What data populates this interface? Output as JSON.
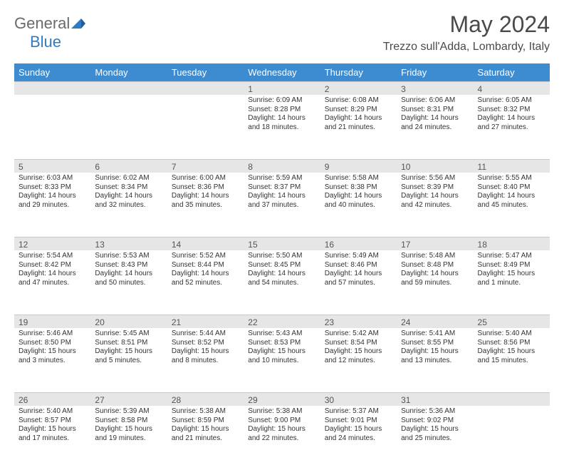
{
  "brand": {
    "word1": "General",
    "word2": "Blue"
  },
  "title": "May 2024",
  "location": "Trezzo sull'Adda, Lombardy, Italy",
  "colors": {
    "header_bg": "#3d8bd0",
    "header_text": "#ffffff",
    "band_bg": "#e6e6e6",
    "grid_line": "#c8c8c8",
    "text": "#333333",
    "muted": "#555555",
    "logo_gray": "#6a6a6a",
    "logo_blue": "#2f7cc2"
  },
  "typography": {
    "title_fontsize": 32,
    "location_fontsize": 16,
    "header_fontsize": 13,
    "cell_fontsize": 10,
    "daynum_fontsize": 12
  },
  "weekdays": [
    "Sunday",
    "Monday",
    "Tuesday",
    "Wednesday",
    "Thursday",
    "Friday",
    "Saturday"
  ],
  "weeks": [
    [
      null,
      null,
      null,
      {
        "n": "1",
        "sunrise": "6:09 AM",
        "sunset": "8:28 PM",
        "daylight": "14 hours and 18 minutes."
      },
      {
        "n": "2",
        "sunrise": "6:08 AM",
        "sunset": "8:29 PM",
        "daylight": "14 hours and 21 minutes."
      },
      {
        "n": "3",
        "sunrise": "6:06 AM",
        "sunset": "8:31 PM",
        "daylight": "14 hours and 24 minutes."
      },
      {
        "n": "4",
        "sunrise": "6:05 AM",
        "sunset": "8:32 PM",
        "daylight": "14 hours and 27 minutes."
      }
    ],
    [
      {
        "n": "5",
        "sunrise": "6:03 AM",
        "sunset": "8:33 PM",
        "daylight": "14 hours and 29 minutes."
      },
      {
        "n": "6",
        "sunrise": "6:02 AM",
        "sunset": "8:34 PM",
        "daylight": "14 hours and 32 minutes."
      },
      {
        "n": "7",
        "sunrise": "6:00 AM",
        "sunset": "8:36 PM",
        "daylight": "14 hours and 35 minutes."
      },
      {
        "n": "8",
        "sunrise": "5:59 AM",
        "sunset": "8:37 PM",
        "daylight": "14 hours and 37 minutes."
      },
      {
        "n": "9",
        "sunrise": "5:58 AM",
        "sunset": "8:38 PM",
        "daylight": "14 hours and 40 minutes."
      },
      {
        "n": "10",
        "sunrise": "5:56 AM",
        "sunset": "8:39 PM",
        "daylight": "14 hours and 42 minutes."
      },
      {
        "n": "11",
        "sunrise": "5:55 AM",
        "sunset": "8:40 PM",
        "daylight": "14 hours and 45 minutes."
      }
    ],
    [
      {
        "n": "12",
        "sunrise": "5:54 AM",
        "sunset": "8:42 PM",
        "daylight": "14 hours and 47 minutes."
      },
      {
        "n": "13",
        "sunrise": "5:53 AM",
        "sunset": "8:43 PM",
        "daylight": "14 hours and 50 minutes."
      },
      {
        "n": "14",
        "sunrise": "5:52 AM",
        "sunset": "8:44 PM",
        "daylight": "14 hours and 52 minutes."
      },
      {
        "n": "15",
        "sunrise": "5:50 AM",
        "sunset": "8:45 PM",
        "daylight": "14 hours and 54 minutes."
      },
      {
        "n": "16",
        "sunrise": "5:49 AM",
        "sunset": "8:46 PM",
        "daylight": "14 hours and 57 minutes."
      },
      {
        "n": "17",
        "sunrise": "5:48 AM",
        "sunset": "8:48 PM",
        "daylight": "14 hours and 59 minutes."
      },
      {
        "n": "18",
        "sunrise": "5:47 AM",
        "sunset": "8:49 PM",
        "daylight": "15 hours and 1 minute."
      }
    ],
    [
      {
        "n": "19",
        "sunrise": "5:46 AM",
        "sunset": "8:50 PM",
        "daylight": "15 hours and 3 minutes."
      },
      {
        "n": "20",
        "sunrise": "5:45 AM",
        "sunset": "8:51 PM",
        "daylight": "15 hours and 5 minutes."
      },
      {
        "n": "21",
        "sunrise": "5:44 AM",
        "sunset": "8:52 PM",
        "daylight": "15 hours and 8 minutes."
      },
      {
        "n": "22",
        "sunrise": "5:43 AM",
        "sunset": "8:53 PM",
        "daylight": "15 hours and 10 minutes."
      },
      {
        "n": "23",
        "sunrise": "5:42 AM",
        "sunset": "8:54 PM",
        "daylight": "15 hours and 12 minutes."
      },
      {
        "n": "24",
        "sunrise": "5:41 AM",
        "sunset": "8:55 PM",
        "daylight": "15 hours and 13 minutes."
      },
      {
        "n": "25",
        "sunrise": "5:40 AM",
        "sunset": "8:56 PM",
        "daylight": "15 hours and 15 minutes."
      }
    ],
    [
      {
        "n": "26",
        "sunrise": "5:40 AM",
        "sunset": "8:57 PM",
        "daylight": "15 hours and 17 minutes."
      },
      {
        "n": "27",
        "sunrise": "5:39 AM",
        "sunset": "8:58 PM",
        "daylight": "15 hours and 19 minutes."
      },
      {
        "n": "28",
        "sunrise": "5:38 AM",
        "sunset": "8:59 PM",
        "daylight": "15 hours and 21 minutes."
      },
      {
        "n": "29",
        "sunrise": "5:38 AM",
        "sunset": "9:00 PM",
        "daylight": "15 hours and 22 minutes."
      },
      {
        "n": "30",
        "sunrise": "5:37 AM",
        "sunset": "9:01 PM",
        "daylight": "15 hours and 24 minutes."
      },
      {
        "n": "31",
        "sunrise": "5:36 AM",
        "sunset": "9:02 PM",
        "daylight": "15 hours and 25 minutes."
      },
      null
    ]
  ],
  "labels": {
    "sunrise": "Sunrise:",
    "sunset": "Sunset:",
    "daylight": "Daylight:"
  }
}
